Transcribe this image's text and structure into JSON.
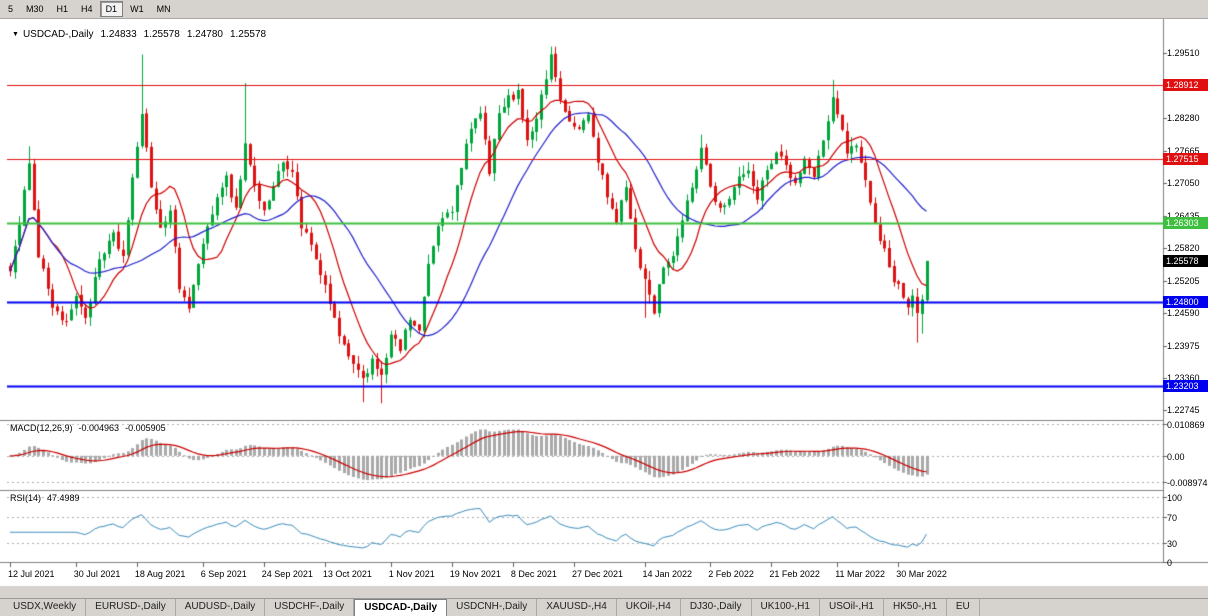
{
  "toolbar": {
    "timeframes": [
      "5",
      "M30",
      "H1",
      "H4",
      "D1",
      "W1",
      "MN"
    ],
    "active": "D1"
  },
  "chart": {
    "title_arrow": "▼",
    "symbol_label": "USDCAD-,Daily",
    "ohlc": {
      "open": "1.24833",
      "high": "1.25578",
      "low": "1.24780",
      "close": "1.25578"
    },
    "y_axis_ticks": [
      {
        "label": "1.29510",
        "value": 1.2951
      },
      {
        "label": "1.28280",
        "value": 1.2828
      },
      {
        "label": "1.27665",
        "value": 1.27665
      },
      {
        "label": "1.27050",
        "value": 1.2705
      },
      {
        "label": "1.26435",
        "value": 1.26435
      },
      {
        "label": "1.25820",
        "value": 1.2582
      },
      {
        "label": "1.25205",
        "value": 1.25205
      },
      {
        "label": "1.24590",
        "value": 1.2459
      },
      {
        "label": "1.23975",
        "value": 1.23975
      },
      {
        "label": "1.23360",
        "value": 1.2336
      },
      {
        "label": "1.22745",
        "value": 1.22745
      }
    ],
    "levels": [
      {
        "label": "1.28912",
        "value": 1.28912,
        "color": "#E01010",
        "width": 1
      },
      {
        "label": "1.27515",
        "value": 1.27515,
        "color": "#E01010",
        "width": 1
      },
      {
        "label": "1.26303",
        "value": 1.26303,
        "color": "#3FBF3F",
        "width": 2
      },
      {
        "label": "1.24800",
        "value": 1.248,
        "color": "#0000F0",
        "width": 2
      },
      {
        "label": "1.23203",
        "value": 1.23203,
        "color": "#0000F0",
        "width": 2
      }
    ],
    "current_price": {
      "label": "1.25578",
      "value": 1.25578,
      "color": "#000000"
    }
  },
  "macd": {
    "name": "MACD(12,26,9)",
    "value_main": "-0.004963",
    "value_signal": "-0.005905",
    "axis": [
      {
        "label": "0.010869",
        "value": 0.010869
      },
      {
        "label": "0.00",
        "value": 0
      },
      {
        "label": "-0.008974",
        "value": -0.008974
      }
    ]
  },
  "rsi": {
    "name": "RSI(14)",
    "value": "47.4989",
    "axis": [
      {
        "label": "100",
        "value": 100
      },
      {
        "label": "70",
        "value": 70
      },
      {
        "label": "30",
        "value": 30
      },
      {
        "label": "0",
        "value": 0
      }
    ]
  },
  "dates": [
    {
      "label": "12 Jul 2021",
      "i": 0
    },
    {
      "label": "30 Jul 2021",
      "i": 14
    },
    {
      "label": "18 Aug 2021",
      "i": 27
    },
    {
      "label": "6 Sep 2021",
      "i": 41
    },
    {
      "label": "24 Sep 2021",
      "i": 54
    },
    {
      "label": "13 Oct 2021",
      "i": 67
    },
    {
      "label": "1 Nov 2021",
      "i": 81
    },
    {
      "label": "19 Nov 2021",
      "i": 94
    },
    {
      "label": "8 Dec 2021",
      "i": 107
    },
    {
      "label": "27 Dec 2021",
      "i": 120
    },
    {
      "label": "14 Jan 2022",
      "i": 135
    },
    {
      "label": "2 Feb 2022",
      "i": 149
    },
    {
      "label": "21 Feb 2022",
      "i": 162
    },
    {
      "label": "11 Mar 2022",
      "i": 176
    },
    {
      "label": "30 Mar 2022",
      "i": 189
    }
  ],
  "tabs": [
    {
      "label": "USDX,Weekly",
      "active": false
    },
    {
      "label": "EURUSD-,Daily",
      "active": false
    },
    {
      "label": "AUDUSD-,Daily",
      "active": false
    },
    {
      "label": "USDCHF-,Daily",
      "active": false
    },
    {
      "label": "USDCAD-,Daily",
      "active": true
    },
    {
      "label": "USDCNH-,Daily",
      "active": false
    },
    {
      "label": "XAUUSD-,H4",
      "active": false
    },
    {
      "label": "UKOil-,H4",
      "active": false
    },
    {
      "label": "DJ30-,Daily",
      "active": false
    },
    {
      "label": "UK100-,H1",
      "active": false
    },
    {
      "label": "USOil-,H1",
      "active": false
    },
    {
      "label": "HK50-,H1",
      "active": false
    },
    {
      "label": "EU",
      "active": false
    }
  ],
  "colors": {
    "candle_up": "#00A63C",
    "candle_down": "#DE1212",
    "ma_fast": "#CC0000",
    "ma_slow": "#2222CC",
    "macd_hist": "#A9A9A9",
    "macd_signal": "#CC0000",
    "rsi_line": "#3C8DBC",
    "chrome": "#d6d3ce"
  },
  "chart_data": {
    "type": "candlestick",
    "symbol": "USDCAD",
    "period": "Daily",
    "x_range": {
      "first_label": "12 Jul 2021",
      "last_label": "30 Mar 2022"
    },
    "y_range": [
      1.2256,
      1.29992
    ],
    "candle_count": 196,
    "noise": 0.0016,
    "wick": 0.0018,
    "close_waypoints": [
      [
        0,
        1.2545
      ],
      [
        2,
        1.262
      ],
      [
        4,
        1.275
      ],
      [
        6,
        1.257
      ],
      [
        9,
        1.2475
      ],
      [
        12,
        1.2435
      ],
      [
        14,
        1.2495
      ],
      [
        16,
        1.245
      ],
      [
        19,
        1.2555
      ],
      [
        22,
        1.2605
      ],
      [
        24,
        1.2565
      ],
      [
        26,
        1.2715
      ],
      [
        28,
        1.283
      ],
      [
        30,
        1.27
      ],
      [
        32,
        1.262
      ],
      [
        34,
        1.265
      ],
      [
        36,
        1.2505
      ],
      [
        38,
        1.2475
      ],
      [
        40,
        1.2545
      ],
      [
        42,
        1.262
      ],
      [
        44,
        1.2685
      ],
      [
        46,
        1.2715
      ],
      [
        48,
        1.2655
      ],
      [
        50,
        1.278
      ],
      [
        52,
        1.27
      ],
      [
        54,
        1.265
      ],
      [
        56,
        1.27
      ],
      [
        58,
        1.2745
      ],
      [
        60,
        1.273
      ],
      [
        62,
        1.2625
      ],
      [
        64,
        1.2585
      ],
      [
        67,
        1.2505
      ],
      [
        69,
        1.2445
      ],
      [
        71,
        1.2395
      ],
      [
        73,
        1.2355
      ],
      [
        75,
        1.2335
      ],
      [
        77,
        1.237
      ],
      [
        79,
        1.2345
      ],
      [
        81,
        1.2415
      ],
      [
        83,
        1.239
      ],
      [
        85,
        1.245
      ],
      [
        87,
        1.243
      ],
      [
        89,
        1.2545
      ],
      [
        91,
        1.2625
      ],
      [
        94,
        1.2655
      ],
      [
        96,
        1.2735
      ],
      [
        98,
        1.281
      ],
      [
        100,
        1.2835
      ],
      [
        102,
        1.273
      ],
      [
        104,
        1.2835
      ],
      [
        106,
        1.2865
      ],
      [
        108,
        1.2875
      ],
      [
        110,
        1.279
      ],
      [
        112,
        1.283
      ],
      [
        115,
        1.2945
      ],
      [
        117,
        1.287
      ],
      [
        119,
        1.2815
      ],
      [
        121,
        1.281
      ],
      [
        123,
        1.2835
      ],
      [
        125,
        1.275
      ],
      [
        127,
        1.268
      ],
      [
        129,
        1.263
      ],
      [
        131,
        1.27
      ],
      [
        133,
        1.258
      ],
      [
        135,
        1.252
      ],
      [
        137,
        1.2465
      ],
      [
        139,
        1.255
      ],
      [
        141,
        1.257
      ],
      [
        143,
        1.263
      ],
      [
        145,
        1.27
      ],
      [
        147,
        1.2775
      ],
      [
        149,
        1.27
      ],
      [
        151,
        1.2655
      ],
      [
        153,
        1.268
      ],
      [
        155,
        1.2715
      ],
      [
        157,
        1.2725
      ],
      [
        159,
        1.268
      ],
      [
        161,
        1.2725
      ],
      [
        163,
        1.277
      ],
      [
        165,
        1.2745
      ],
      [
        167,
        1.27
      ],
      [
        169,
        1.275
      ],
      [
        171,
        1.2715
      ],
      [
        173,
        1.279
      ],
      [
        175,
        1.2865
      ],
      [
        177,
        1.28
      ],
      [
        178,
        1.276
      ],
      [
        180,
        1.278
      ],
      [
        182,
        1.2715
      ],
      [
        184,
        1.263
      ],
      [
        186,
        1.2575
      ],
      [
        188,
        1.252
      ],
      [
        190,
        1.2495
      ],
      [
        191,
        1.247
      ],
      [
        192,
        1.249
      ],
      [
        193,
        1.2455
      ],
      [
        194,
        1.2483
      ],
      [
        195,
        1.25578
      ]
    ],
    "wick_overrides": [
      {
        "i": 4,
        "h": 1.2775
      },
      {
        "i": 28,
        "h": 1.2949
      },
      {
        "i": 50,
        "h": 1.2895
      },
      {
        "i": 75,
        "l": 1.229
      },
      {
        "i": 79,
        "l": 1.2288
      },
      {
        "i": 115,
        "h": 1.2964
      },
      {
        "i": 135,
        "l": 1.245
      },
      {
        "i": 147,
        "h": 1.2797
      },
      {
        "i": 175,
        "h": 1.2901
      },
      {
        "i": 193,
        "l": 1.2403
      },
      {
        "i": 194,
        "l": 1.242
      }
    ],
    "last_candle": {
      "open": 1.24833,
      "high": 1.25578,
      "low": 1.2478,
      "close": 1.25578
    },
    "moving_averages": [
      {
        "period": 10,
        "role": "fast"
      },
      {
        "period": 24,
        "role": "slow"
      }
    ],
    "horizontal_levels": [
      1.28912,
      1.27515,
      1.26303,
      1.248,
      1.23203
    ],
    "indicators": [
      {
        "name": "MACD",
        "params": [
          12,
          26,
          9
        ],
        "last_values": [
          -0.004963,
          -0.005905
        ]
      },
      {
        "name": "RSI",
        "params": [
          14
        ],
        "last_value": 47.4989
      }
    ]
  }
}
